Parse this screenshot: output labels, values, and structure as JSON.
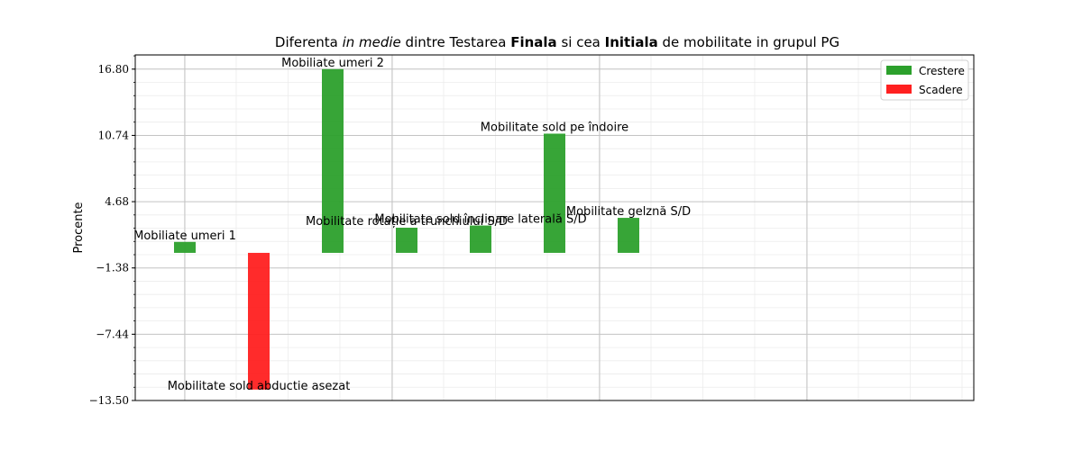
{
  "chart_data": {
    "type": "bar",
    "title_parts": [
      {
        "text": "Diferenta ",
        "style": "normal"
      },
      {
        "text": "in medie",
        "style": "italic"
      },
      {
        "text": " dintre Testarea ",
        "style": "normal"
      },
      {
        "text": "Finala",
        "style": "bold"
      },
      {
        "text": " si cea ",
        "style": "normal"
      },
      {
        "text": "Initiala",
        "style": "bold"
      },
      {
        "text": " de mobilitate in grupul PG",
        "style": "normal"
      }
    ],
    "ylabel": "Procente",
    "ylim": [
      -13.5,
      18.1
    ],
    "yticks": [
      -13.5,
      -7.44,
      -1.38,
      4.68,
      10.74,
      16.8
    ],
    "ytick_labels": [
      "−13.50",
      "−7.44",
      "−1.38",
      "4.68",
      "10.74",
      "16.80"
    ],
    "grid": true,
    "legend_position": "top-right",
    "legend": [
      {
        "name": "Crestere",
        "color": "#2ca02c"
      },
      {
        "name": "Scadere",
        "color": "#ff2020"
      }
    ],
    "bars": [
      {
        "label": "Mobiliate umeri 1",
        "value": 1.0,
        "series": "Crestere"
      },
      {
        "label": "Mobilitate sold abductie asezat",
        "value": -12.5,
        "series": "Scadere"
      },
      {
        "label": "Mobiliate umeri 2",
        "value": 16.8,
        "series": "Crestere"
      },
      {
        "label": "Mobilitate rotație a trunchiului S/D",
        "value": 2.3,
        "series": "Crestere"
      },
      {
        "label": "Mobilitate sold înclinare laterală S/D",
        "value": 2.5,
        "series": "Crestere"
      },
      {
        "label": "Mobilitate sold pe îndoire",
        "value": 10.9,
        "series": "Crestere"
      },
      {
        "label": "Mobilitate gelznă S/D",
        "value": 3.2,
        "series": "Crestere"
      }
    ]
  }
}
